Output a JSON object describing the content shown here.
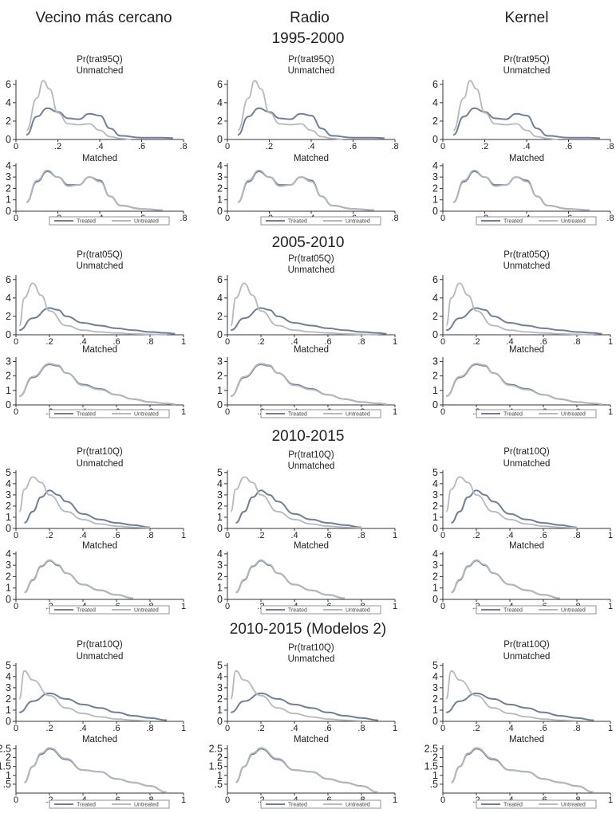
{
  "colors": {
    "treated": "#6f7f97",
    "untreated": "#b4b8bf",
    "axis": "#333333",
    "text": "#222222"
  },
  "column_titles": [
    "Vecino más cercano",
    "Radio",
    "Kernel"
  ],
  "legend": {
    "treated": "Treated",
    "untreated": "Untreated"
  },
  "chart_data": [
    {
      "type": "line",
      "period": "1995-2000",
      "title": "Pr(trat95Q)",
      "panels": [
        {
          "subtitle": "Unmatched",
          "ylim": [
            0,
            6.5
          ],
          "yticks": [
            0,
            2,
            4,
            6
          ],
          "xlim": [
            0,
            0.8
          ],
          "xticks": [
            "0",
            ".2",
            ".4",
            ".6",
            ".8"
          ],
          "series": [
            {
              "name": "Treated",
              "x": [
                0.05,
                0.1,
                0.15,
                0.2,
                0.25,
                0.3,
                0.35,
                0.4,
                0.45,
                0.5,
                0.6,
                0.7,
                0.75
              ],
              "y": [
                0.5,
                2.5,
                3.4,
                3.0,
                2.3,
                2.2,
                2.8,
                2.6,
                1.2,
                0.4,
                0.2,
                0.2,
                0.15
              ]
            },
            {
              "name": "Untreated",
              "x": [
                0.05,
                0.1,
                0.13,
                0.16,
                0.2,
                0.25,
                0.3,
                0.35,
                0.4,
                0.45,
                0.5,
                0.55
              ],
              "y": [
                1.0,
                4.5,
                6.4,
                5.5,
                2.9,
                1.7,
                1.6,
                1.7,
                1.0,
                0.3,
                0.1,
                0.0
              ]
            }
          ],
          "variants": [
            {
              "t_scale": 1.0,
              "u_scale": 1.0
            },
            {
              "t_scale": 1.0,
              "u_scale": 1.0
            },
            {
              "t_scale": 1.0,
              "u_scale": 1.0
            }
          ]
        },
        {
          "subtitle": "Matched",
          "ylim": [
            0,
            4.2
          ],
          "yticks": [
            0,
            1,
            2,
            3,
            4
          ],
          "xlim": [
            0,
            0.8
          ],
          "xticks": [
            "0",
            ".2",
            ".4",
            ".6",
            ".8"
          ],
          "series": [
            {
              "name": "Treated",
              "x": [
                0.05,
                0.1,
                0.15,
                0.2,
                0.25,
                0.3,
                0.35,
                0.4,
                0.45,
                0.5,
                0.6,
                0.7
              ],
              "y": [
                0.8,
                2.6,
                3.5,
                3.0,
                2.3,
                2.3,
                3.0,
                2.7,
                1.3,
                0.5,
                0.2,
                0.1
              ]
            },
            {
              "name": "Untreated",
              "x": [
                0.05,
                0.1,
                0.15,
                0.2,
                0.25,
                0.3,
                0.35,
                0.4,
                0.45,
                0.5,
                0.6,
                0.7
              ],
              "y": [
                0.8,
                2.7,
                3.6,
                3.0,
                2.2,
                2.3,
                3.0,
                2.6,
                1.3,
                0.5,
                0.2,
                0.1
              ]
            }
          ]
        }
      ]
    },
    {
      "type": "line",
      "period": "2005-2010",
      "title": "Pr(trat05Q)",
      "panels": [
        {
          "subtitle": "Unmatched",
          "ylim": [
            0,
            6.5
          ],
          "yticks": [
            0,
            2,
            4,
            6
          ],
          "xlim": [
            0,
            1
          ],
          "xticks": [
            "0",
            ".2",
            ".4",
            ".6",
            ".8",
            "1"
          ],
          "series": [
            {
              "name": "Treated",
              "x": [
                0.02,
                0.1,
                0.2,
                0.25,
                0.3,
                0.4,
                0.5,
                0.6,
                0.7,
                0.8,
                0.9,
                0.95
              ],
              "y": [
                0.5,
                1.8,
                2.9,
                2.7,
                2.0,
                1.3,
                1.0,
                0.7,
                0.5,
                0.3,
                0.2,
                0.1
              ]
            },
            {
              "name": "Untreated",
              "x": [
                0.02,
                0.05,
                0.1,
                0.15,
                0.2,
                0.3,
                0.4,
                0.5,
                0.6,
                0.7,
                0.8,
                0.9
              ],
              "y": [
                1.0,
                4.0,
                5.6,
                4.3,
                2.6,
                1.0,
                0.5,
                0.3,
                0.2,
                0.1,
                0.05,
                0.0
              ]
            }
          ]
        },
        {
          "subtitle": "Matched",
          "ylim": [
            0,
            3.3
          ],
          "yticks": [
            0,
            1,
            2,
            3
          ],
          "xlim": [
            0,
            1
          ],
          "xticks": [
            "0",
            ".2",
            ".4",
            ".6",
            ".8",
            "1"
          ],
          "series": [
            {
              "name": "Treated",
              "x": [
                0.02,
                0.1,
                0.2,
                0.25,
                0.3,
                0.4,
                0.5,
                0.6,
                0.7,
                0.8,
                0.9,
                0.95
              ],
              "y": [
                0.6,
                1.9,
                2.8,
                2.7,
                2.2,
                1.4,
                1.1,
                0.7,
                0.4,
                0.2,
                0.1,
                0.05
              ]
            },
            {
              "name": "Untreated",
              "x": [
                0.02,
                0.1,
                0.2,
                0.25,
                0.3,
                0.4,
                0.5,
                0.6,
                0.7,
                0.8,
                0.9,
                0.95
              ],
              "y": [
                0.6,
                1.95,
                2.85,
                2.75,
                2.2,
                1.35,
                1.05,
                0.7,
                0.4,
                0.2,
                0.1,
                0.05
              ]
            }
          ]
        }
      ]
    },
    {
      "type": "line",
      "period": "2010-2015",
      "title": "Pr(trat10Q)",
      "panels": [
        {
          "subtitle": "Unmatched",
          "ylim": [
            0,
            5.2
          ],
          "yticks": [
            0,
            1,
            2,
            3,
            4,
            5
          ],
          "xlim": [
            0,
            1
          ],
          "xticks": [
            "0",
            ".2",
            ".4",
            ".6",
            ".8",
            "1"
          ],
          "series": [
            {
              "name": "Treated",
              "x": [
                0.05,
                0.1,
                0.15,
                0.2,
                0.25,
                0.3,
                0.4,
                0.5,
                0.6,
                0.7,
                0.8
              ],
              "y": [
                0.5,
                1.5,
                2.8,
                3.4,
                3.0,
                2.4,
                1.3,
                0.8,
                0.5,
                0.3,
                0.1
              ]
            },
            {
              "name": "Untreated",
              "x": [
                0.02,
                0.05,
                0.1,
                0.15,
                0.2,
                0.3,
                0.4,
                0.5,
                0.6,
                0.7,
                0.8
              ],
              "y": [
                1.5,
                3.5,
                4.6,
                4.1,
                3.0,
                1.5,
                0.8,
                0.4,
                0.2,
                0.1,
                0.05
              ]
            }
          ]
        },
        {
          "subtitle": "Matched",
          "ylim": [
            0,
            4.2
          ],
          "yticks": [
            0,
            1,
            2,
            3,
            4
          ],
          "xlim": [
            0,
            1
          ],
          "xticks": [
            "0",
            ".2",
            ".4",
            ".6",
            ".8",
            "1"
          ],
          "series": [
            {
              "name": "Treated",
              "x": [
                0.05,
                0.1,
                0.15,
                0.2,
                0.25,
                0.3,
                0.4,
                0.5,
                0.6,
                0.7
              ],
              "y": [
                0.6,
                1.7,
                2.9,
                3.4,
                3.0,
                2.3,
                1.3,
                0.8,
                0.4,
                0.1
              ]
            },
            {
              "name": "Untreated",
              "x": [
                0.05,
                0.1,
                0.15,
                0.2,
                0.25,
                0.3,
                0.4,
                0.5,
                0.6,
                0.7
              ],
              "y": [
                0.6,
                1.75,
                2.95,
                3.45,
                3.05,
                2.3,
                1.3,
                0.8,
                0.4,
                0.1
              ]
            }
          ]
        }
      ]
    },
    {
      "type": "line",
      "period": "2010-2015 (Modelos 2)",
      "title": "Pr(trat10Q)",
      "panels": [
        {
          "subtitle": "Unmatched",
          "ylim": [
            0,
            5.2
          ],
          "yticks": [
            0,
            1,
            2,
            3,
            4,
            5
          ],
          "xlim": [
            0,
            1
          ],
          "xticks": [
            "0",
            ".2",
            ".4",
            ".6",
            ".8",
            "1"
          ],
          "series": [
            {
              "name": "Treated",
              "x": [
                0.02,
                0.1,
                0.2,
                0.3,
                0.4,
                0.5,
                0.6,
                0.7,
                0.8,
                0.9
              ],
              "y": [
                0.8,
                1.8,
                2.5,
                2.0,
                1.5,
                1.2,
                0.8,
                0.5,
                0.3,
                0.1
              ]
            },
            {
              "name": "Untreated",
              "x": [
                0.02,
                0.05,
                0.1,
                0.2,
                0.3,
                0.4,
                0.5,
                0.6,
                0.7,
                0.8
              ],
              "y": [
                2.0,
                4.5,
                3.7,
                2.3,
                1.2,
                0.7,
                0.4,
                0.2,
                0.1,
                0.05
              ]
            }
          ]
        },
        {
          "subtitle": "Matched",
          "ylim": [
            0,
            2.7
          ],
          "yticks": [
            ".5",
            "1",
            "1.5",
            "2",
            "2.5"
          ],
          "ytick_values": [
            0.5,
            1,
            1.5,
            2,
            2.5
          ],
          "xlim": [
            0,
            1
          ],
          "xticks": [
            "0",
            ".2",
            ".4",
            ".6",
            ".8",
            "1"
          ],
          "series": [
            {
              "name": "Treated",
              "x": [
                0.05,
                0.1,
                0.15,
                0.2,
                0.3,
                0.4,
                0.5,
                0.6,
                0.7,
                0.8,
                0.9
              ],
              "y": [
                0.6,
                1.5,
                2.2,
                2.5,
                1.9,
                1.3,
                1.2,
                0.8,
                0.6,
                0.4,
                0.05
              ]
            },
            {
              "name": "Untreated",
              "x": [
                0.05,
                0.1,
                0.15,
                0.2,
                0.3,
                0.4,
                0.5,
                0.6,
                0.7,
                0.8,
                0.9
              ],
              "y": [
                0.6,
                1.5,
                2.25,
                2.55,
                1.95,
                1.3,
                1.2,
                0.8,
                0.6,
                0.4,
                0.05
              ]
            }
          ]
        }
      ]
    }
  ]
}
